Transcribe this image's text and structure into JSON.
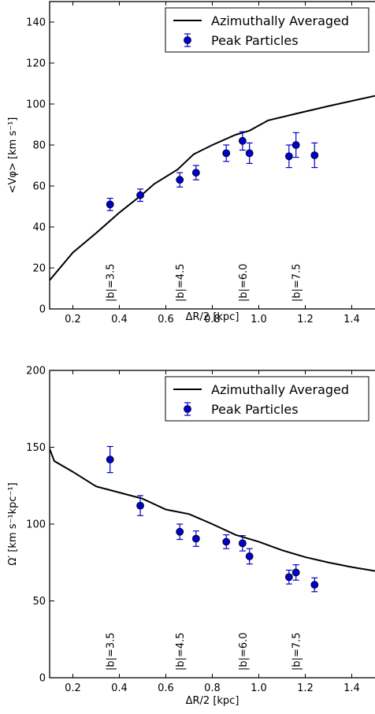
{
  "chart_data": [
    {
      "type": "line",
      "xlabel": "ΔR/2 [kpc]",
      "ylabel": "<Vφ> [km s⁻¹]",
      "xlim": [
        0.1,
        1.5
      ],
      "ylim": [
        0,
        150
      ],
      "xticks": [
        0.2,
        0.4,
        0.6,
        0.8,
        1.0,
        1.2,
        1.4
      ],
      "xtick_labels": [
        "0.2",
        "0.4",
        "0.6",
        "0.8",
        "1.0",
        "1.2",
        "1.4"
      ],
      "yticks": [
        0,
        20,
        40,
        60,
        80,
        100,
        120,
        140
      ],
      "ytick_labels": [
        "0",
        "20",
        "40",
        "60",
        "80",
        "100",
        "120",
        "140"
      ],
      "legend_position": "top-right",
      "series": [
        {
          "name": "Azimuthally Averaged",
          "style": "line",
          "color": "#000000",
          "x": [
            0.1,
            0.2,
            0.3,
            0.4,
            0.5,
            0.55,
            0.65,
            0.72,
            0.8,
            0.9,
            0.96,
            1.04,
            1.15,
            1.3,
            1.5
          ],
          "y": [
            14,
            27.5,
            37,
            47,
            56,
            61,
            68,
            75.5,
            80,
            85,
            87,
            92,
            95,
            99,
            104
          ]
        },
        {
          "name": "Peak Particles",
          "style": "errorbar",
          "color": "#0000cc",
          "x": [
            0.36,
            0.49,
            0.66,
            0.73,
            0.86,
            0.93,
            0.96,
            1.13,
            1.16,
            1.24
          ],
          "y": [
            51,
            55.5,
            63,
            66.5,
            76,
            82,
            76,
            74.5,
            80,
            75
          ],
          "yerr": [
            3,
            3,
            3.5,
            3.5,
            4,
            4.5,
            5,
            5.5,
            6,
            6
          ]
        }
      ],
      "annotations": [
        {
          "text": "|b|=3.5",
          "x": 0.36
        },
        {
          "text": "|b|=4.5",
          "x": 0.66
        },
        {
          "text": "|b|=6.0",
          "x": 0.93
        },
        {
          "text": "|b|=7.5",
          "x": 1.16
        }
      ]
    },
    {
      "type": "line",
      "xlabel": "ΔR/2 [kpc]",
      "ylabel": "Ω′ [km s⁻¹kpc⁻¹]",
      "xlim": [
        0.1,
        1.5
      ],
      "ylim": [
        0,
        200
      ],
      "xticks": [
        0.2,
        0.4,
        0.6,
        0.8,
        1.0,
        1.2,
        1.4
      ],
      "xtick_labels": [
        "0.2",
        "0.4",
        "0.6",
        "0.8",
        "1.0",
        "1.2",
        "1.4"
      ],
      "yticks": [
        0,
        50,
        100,
        150,
        200
      ],
      "ytick_labels": [
        "0",
        "50",
        "100",
        "150",
        "200"
      ],
      "legend_position": "top-right",
      "series": [
        {
          "name": "Azimuthally Averaged",
          "style": "line",
          "color": "#000000",
          "x": [
            0.1,
            0.12,
            0.2,
            0.3,
            0.4,
            0.5,
            0.6,
            0.7,
            0.8,
            0.9,
            1.0,
            1.1,
            1.2,
            1.3,
            1.4,
            1.5
          ],
          "y": [
            149,
            141,
            134,
            124.5,
            120.5,
            116.5,
            109.5,
            106.5,
            100,
            93,
            88.5,
            83,
            78.5,
            75,
            72,
            69.5
          ]
        },
        {
          "name": "Peak Particles",
          "style": "errorbar",
          "color": "#0000cc",
          "x": [
            0.36,
            0.49,
            0.66,
            0.73,
            0.86,
            0.93,
            0.96,
            1.13,
            1.16,
            1.24
          ],
          "y": [
            142,
            112,
            95,
            90.5,
            88.5,
            87.5,
            79,
            65.5,
            68.5,
            60.5
          ],
          "yerr": [
            8.5,
            6.5,
            5,
            5,
            4.5,
            5,
            5,
            4.5,
            5,
            4.5
          ]
        }
      ],
      "annotations": [
        {
          "text": "|b|=3.5",
          "x": 0.36
        },
        {
          "text": "|b|=4.5",
          "x": 0.66
        },
        {
          "text": "|b|=6.0",
          "x": 0.93
        },
        {
          "text": "|b|=7.5",
          "x": 1.16
        }
      ]
    }
  ]
}
